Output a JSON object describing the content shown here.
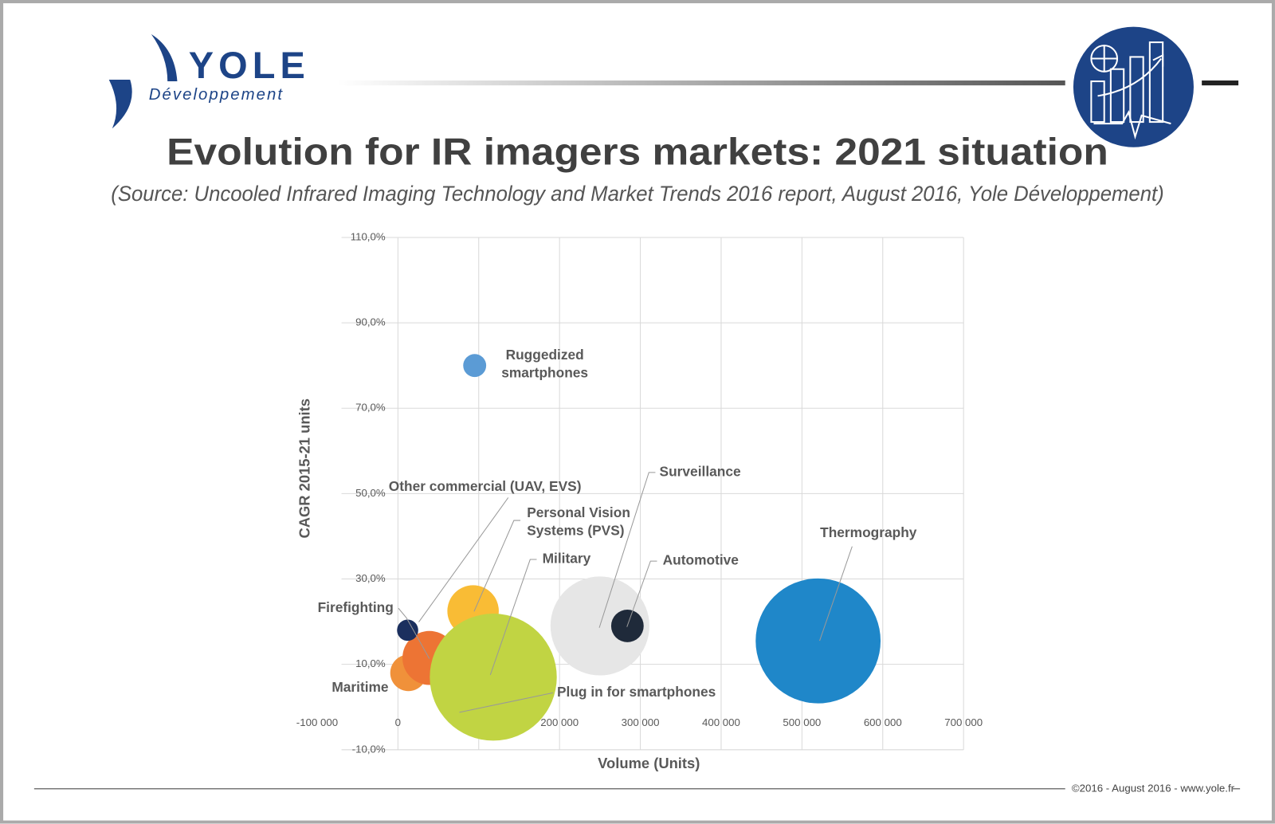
{
  "header": {
    "logo_name": "YOLE",
    "logo_sub": "Développement"
  },
  "chart_data": {
    "type": "bubble",
    "title": "Evolution for IR imagers markets: 2021 situation",
    "subtitle": "(Source: Uncooled Infrared Imaging Technology and Market Trends 2016 report, August 2016, Yole Développement)",
    "x_label": "Volume (Units)",
    "y_label": "CAGR 2015-21 units",
    "xlim": [
      -100000,
      700000
    ],
    "ylim": [
      -10,
      110
    ],
    "xticks": [
      {
        "value": -100000,
        "label": "-100 000"
      },
      0,
      {
        "value": 100000,
        "label": "100 000"
      },
      {
        "value": 200000,
        "label": "200 000"
      },
      {
        "value": 300000,
        "label": "300 000"
      },
      {
        "value": 400000,
        "label": "400 000"
      },
      {
        "value": 500000,
        "label": "500 000"
      },
      {
        "value": 600000,
        "label": "600 000"
      },
      {
        "value": 700000,
        "label": "700 000"
      }
    ],
    "yticks": [
      {
        "value": -10,
        "label": "-10,0%"
      },
      {
        "value": 10,
        "label": "10,0%"
      },
      {
        "value": 30,
        "label": "30,0%"
      },
      {
        "value": 50,
        "label": "50,0%"
      },
      {
        "value": 70,
        "label": "70,0%"
      },
      {
        "value": 90,
        "label": "90,0%"
      },
      {
        "value": 110,
        "label": "110,0%"
      }
    ],
    "grid": true,
    "series": [
      {
        "name": "Ruggedized smartphones",
        "color": "#5b9bd5",
        "x": 95000,
        "y": 80,
        "size": 2
      },
      {
        "name": "Thermography",
        "color": "#1f87c9",
        "x": 520000,
        "y": 15.5,
        "size": 59
      },
      {
        "name": "Surveillance",
        "color": "#e6e6e6",
        "x": 250000,
        "y": 19,
        "size": 37
      },
      {
        "name": "Automotive",
        "color": "#1f2a3a",
        "x": 284000,
        "y": 19,
        "size": 4
      },
      {
        "name": "Personal Vision Systems (PVS)",
        "color": "#f9bc35",
        "x": 93000,
        "y": 22.5,
        "size": 10
      },
      {
        "name": "Maritime",
        "color": "#f0913a",
        "x": 13000,
        "y": 8,
        "size": 5
      },
      {
        "name": "Firefighting",
        "color": "#ed7434",
        "x": 39000,
        "y": 11.5,
        "size": 11
      },
      {
        "name": "Military",
        "color": "#a4b83a",
        "x": 115000,
        "y": 7.5,
        "size": 3
      },
      {
        "name": "Plug in for smartphones",
        "color": "#c1d443",
        "x": 118000,
        "y": 7,
        "size": 61
      },
      {
        "name": "Other commercial (UAV, EVS)",
        "color": "#1b2f5e",
        "x": 12000,
        "y": 18,
        "size": 1.7
      }
    ]
  },
  "footer": {
    "text": "©2016 - August 2016 - www.yole.fr"
  }
}
